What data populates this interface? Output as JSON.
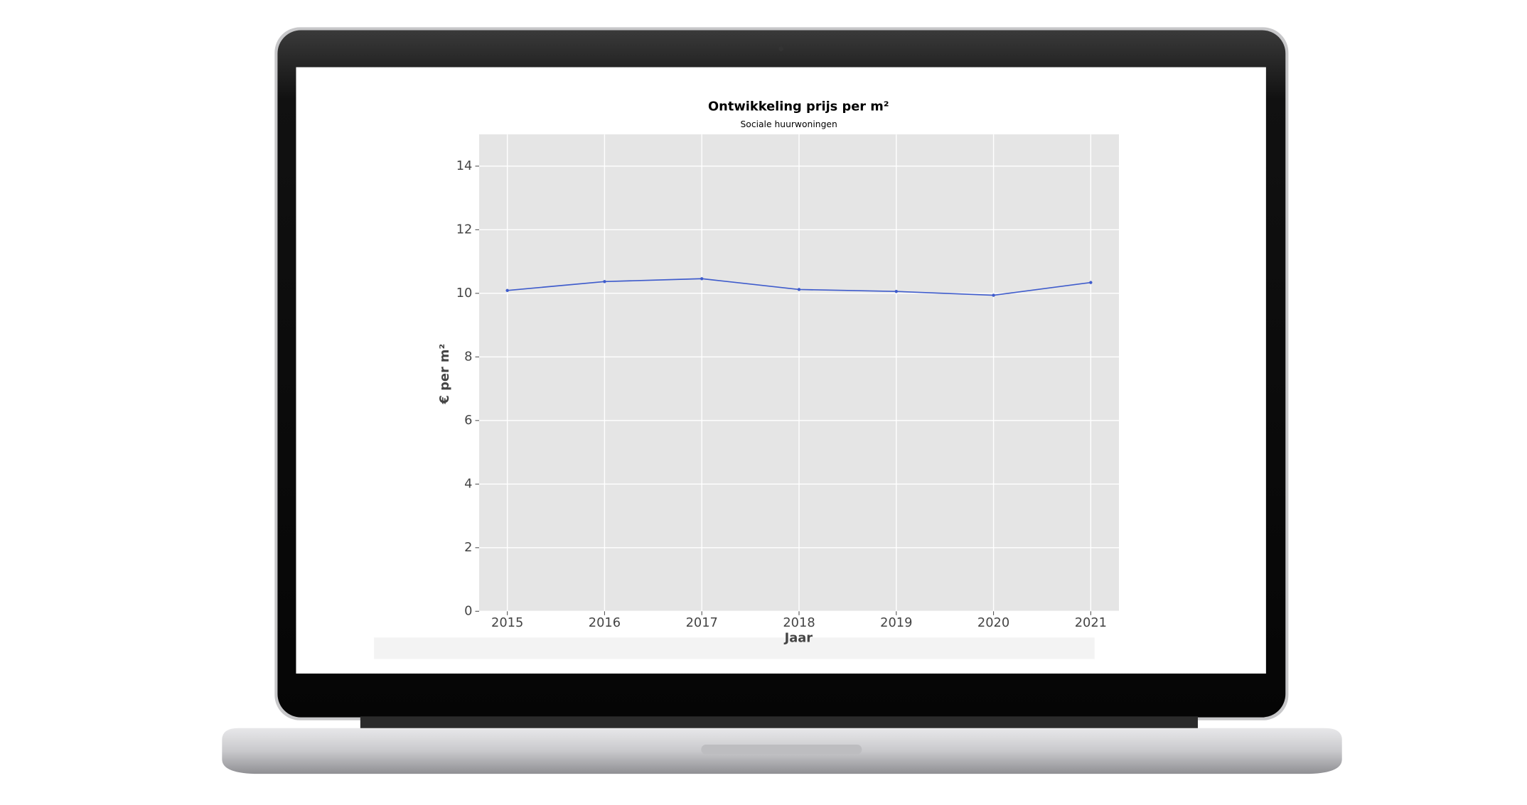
{
  "chart_data": {
    "type": "line",
    "title": "Ontwikkeling prijs per m²",
    "subtitle": "Sociale huurwoningen",
    "x_label": "Jaar",
    "y_label": "€ per m²",
    "x": [
      2015,
      2016,
      2017,
      2018,
      2019,
      2020,
      2021
    ],
    "series": [
      {
        "name": "Sociale huurwoningen",
        "color": "#3f5ccc",
        "values": [
          10.09,
          10.37,
          10.46,
          10.12,
          10.06,
          9.94,
          10.34
        ]
      }
    ],
    "xlim": [
      2014.71,
      2021.29
    ],
    "xticks": [
      2015,
      2016,
      2017,
      2018,
      2019,
      2020,
      2021
    ],
    "ylim": [
      0,
      15
    ],
    "yticks": [
      0,
      2,
      4,
      6,
      8,
      10,
      12,
      14
    ],
    "grid": true
  }
}
